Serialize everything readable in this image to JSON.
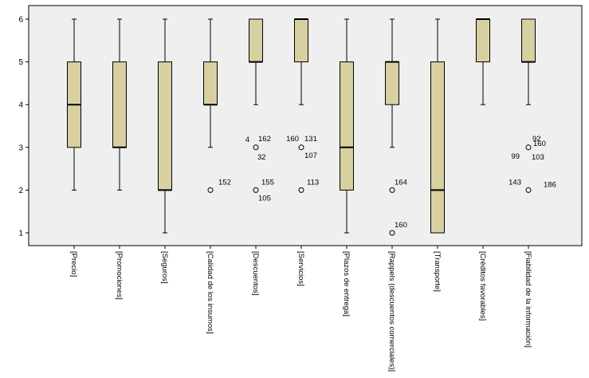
{
  "chart_data": {
    "type": "boxplot",
    "ylim": [
      0.7,
      6.3
    ],
    "yticks": [
      1,
      2,
      3,
      4,
      5,
      6
    ],
    "grid": false,
    "colors": {
      "plot_bg": "#efefef",
      "box_fill": "#d8d0a1",
      "box_stroke": "#000000"
    },
    "categories": [
      "[Precio]",
      "[Promociones]",
      "[Seguros]",
      "[Calidad de los insumos]",
      "[Descuentos]",
      "[Servicios]",
      "[Plazos de entrega]",
      "[Rappels (descuentos comerciales)]",
      "[Transporte]",
      "[Créditos favorables]",
      "[Fiabilidad de la información]"
    ],
    "boxes": [
      {
        "min": 2,
        "q1": 3,
        "median": 4,
        "q3": 5,
        "max": 6,
        "outliers": []
      },
      {
        "min": 2,
        "q1": 3,
        "median": 3,
        "q3": 5,
        "max": 6,
        "outliers": []
      },
      {
        "min": 1,
        "q1": 2,
        "median": 2,
        "q3": 5,
        "max": 6,
        "outliers": []
      },
      {
        "min": 3,
        "q1": 4,
        "median": 4,
        "q3": 5,
        "max": 6,
        "outliers": [
          {
            "value": 2,
            "labels": [
              "152"
            ]
          }
        ]
      },
      {
        "min": 4,
        "q1": 5,
        "median": 5,
        "q3": 6,
        "max": 6,
        "outliers": [
          {
            "value": 3,
            "labels": [
              "4",
              "162",
              "32"
            ]
          },
          {
            "value": 2,
            "labels": [
              "155",
              "105"
            ]
          }
        ]
      },
      {
        "min": 4,
        "q1": 5,
        "median": 6,
        "q3": 6,
        "max": 6,
        "outliers": [
          {
            "value": 3,
            "labels": [
              "160",
              "131",
              "107"
            ]
          },
          {
            "value": 2,
            "labels": [
              "113"
            ]
          }
        ]
      },
      {
        "min": 1,
        "q1": 2,
        "median": 3,
        "q3": 5,
        "max": 6,
        "outliers": []
      },
      {
        "min": 3,
        "q1": 4,
        "median": 5,
        "q3": 5,
        "max": 6,
        "outliers": [
          {
            "value": 2,
            "labels": [
              "164"
            ]
          },
          {
            "value": 1,
            "labels": [
              "160"
            ]
          }
        ]
      },
      {
        "min": 1,
        "q1": 1,
        "median": 2,
        "q3": 5,
        "max": 6,
        "outliers": []
      },
      {
        "min": 4,
        "q1": 5,
        "median": 6,
        "q3": 6,
        "max": 6,
        "outliers": []
      },
      {
        "min": 4,
        "q1": 5,
        "median": 5,
        "q3": 6,
        "max": 6,
        "outliers": [
          {
            "value": 3,
            "labels": [
              "99",
              "92",
              "160",
              "103"
            ]
          },
          {
            "value": 2,
            "labels": [
              "143",
              "186"
            ]
          }
        ]
      }
    ]
  }
}
